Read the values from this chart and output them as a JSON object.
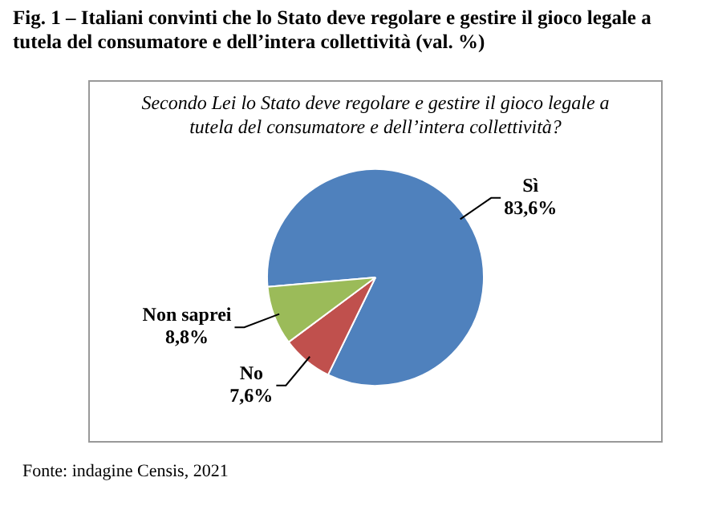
{
  "chart_data": {
    "type": "pie",
    "title": "Fig. 1 – Italiani convinti che lo Stato deve regolare e gestire il gioco legale a tutela del consumatore e dell’intera collettività (val. %)",
    "subtitle": "Secondo Lei lo Stato deve regolare e gestire il gioco legale a tutela del consumatore e dell’intera collettività?",
    "categories": [
      "Sì",
      "No",
      "Non saprei"
    ],
    "values": [
      83.6,
      7.6,
      8.8
    ],
    "colors": [
      "#4f81bd",
      "#c0504d",
      "#9bbb59"
    ],
    "value_labels": [
      "83,6%",
      "7,6%",
      "8,8%"
    ],
    "legend": false,
    "annotations": [
      "Fonte: indagine Censis, 2021"
    ]
  }
}
